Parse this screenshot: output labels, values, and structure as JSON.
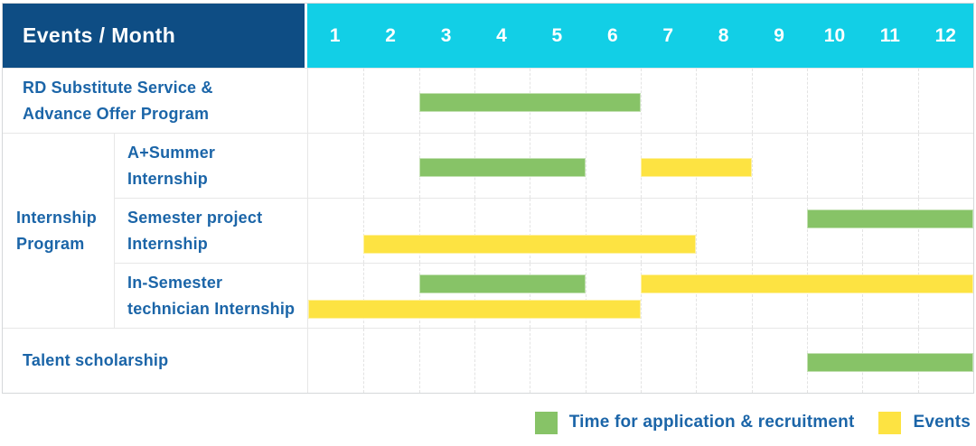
{
  "header": {
    "title": "Events / Month",
    "months": [
      "1",
      "2",
      "3",
      "4",
      "5",
      "6",
      "7",
      "8",
      "9",
      "10",
      "11",
      "12"
    ]
  },
  "colors": {
    "header_bg": "#0e4d84",
    "months_bg": "#12cfe6",
    "label_text": "#1b65a8",
    "application": "#87c367",
    "event": "#fde342"
  },
  "group": {
    "label_lines": [
      "Internship",
      "Program"
    ]
  },
  "rows": [
    {
      "key": "rd_substitute_service",
      "label_lines": [
        "RD Substitute Service &",
        "Advance Offer Program"
      ],
      "bars": [
        {
          "type": "application",
          "start": 3,
          "end": 6,
          "track": "center"
        }
      ]
    },
    {
      "key": "a_plus_summer_internship",
      "label_lines": [
        "A+Summer",
        "Internship"
      ],
      "bars": [
        {
          "type": "application",
          "start": 3,
          "end": 5,
          "track": "center"
        },
        {
          "type": "event",
          "start": 7,
          "end": 8,
          "track": "center"
        }
      ]
    },
    {
      "key": "semester_project_internship",
      "label_lines": [
        "Semester project",
        "Internship"
      ],
      "bars": [
        {
          "type": "application",
          "start": 10,
          "end": 12,
          "track": "top"
        },
        {
          "type": "event",
          "start": 2,
          "end": 7,
          "track": "bottom"
        }
      ]
    },
    {
      "key": "in_semester_technician_internship",
      "label_lines": [
        "In-Semester",
        "technician Internship"
      ],
      "bars": [
        {
          "type": "application",
          "start": 3,
          "end": 5,
          "track": "top"
        },
        {
          "type": "event",
          "start": 7,
          "end": 12,
          "track": "top"
        },
        {
          "type": "event",
          "start": 1,
          "end": 6,
          "track": "bottom"
        }
      ]
    },
    {
      "key": "talent_scholarship",
      "label_lines": [
        "Talent scholarship"
      ],
      "bars": [
        {
          "type": "application",
          "start": 10,
          "end": 12,
          "track": "center"
        }
      ]
    }
  ],
  "legend": {
    "items": [
      {
        "label": "Time for application & recruitment",
        "type": "application"
      },
      {
        "label": "Events",
        "type": "event"
      }
    ]
  },
  "chart_data": {
    "type": "gantt",
    "title": "Events / Month",
    "x_axis": {
      "label": "Month",
      "ticks": [
        1,
        2,
        3,
        4,
        5,
        6,
        7,
        8,
        9,
        10,
        11,
        12
      ],
      "range": [
        1,
        12
      ]
    },
    "legend_position": "bottom-right",
    "series_legend": [
      {
        "name": "Time for application & recruitment",
        "color": "#87c367"
      },
      {
        "name": "Events",
        "color": "#fde342"
      }
    ],
    "tasks": [
      {
        "name": "RD Substitute Service & Advance Offer Program",
        "group": null,
        "spans": [
          {
            "series": "Time for application & recruitment",
            "months": [
              3,
              6
            ]
          }
        ]
      },
      {
        "name": "A+Summer Internship",
        "group": "Internship Program",
        "spans": [
          {
            "series": "Time for application & recruitment",
            "months": [
              3,
              5
            ]
          },
          {
            "series": "Events",
            "months": [
              7,
              8
            ]
          }
        ]
      },
      {
        "name": "Semester project Internship",
        "group": "Internship Program",
        "spans": [
          {
            "series": "Time for application & recruitment",
            "months": [
              10,
              12
            ]
          },
          {
            "series": "Events",
            "months": [
              2,
              7
            ]
          }
        ]
      },
      {
        "name": "In-Semester technician Internship",
        "group": "Internship Program",
        "spans": [
          {
            "series": "Time for application & recruitment",
            "months": [
              3,
              5
            ]
          },
          {
            "series": "Events",
            "months": [
              7,
              12
            ]
          },
          {
            "series": "Events",
            "months": [
              1,
              6
            ]
          }
        ]
      },
      {
        "name": "Talent scholarship",
        "group": null,
        "spans": [
          {
            "series": "Time for application & recruitment",
            "months": [
              10,
              12
            ]
          }
        ]
      }
    ]
  }
}
